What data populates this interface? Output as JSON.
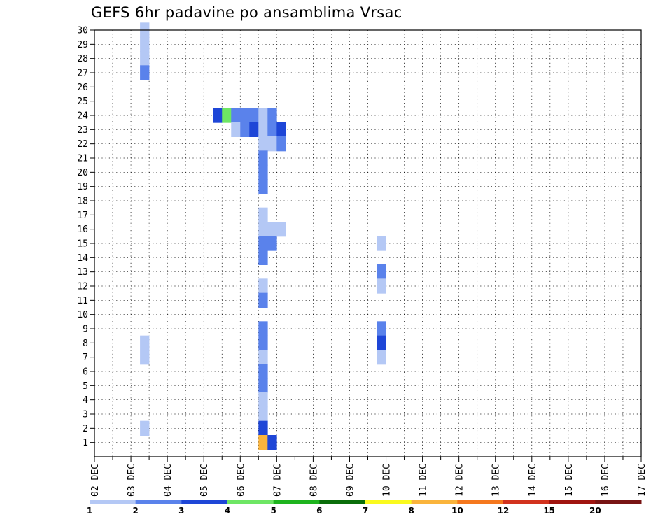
{
  "chart_data": {
    "type": "heatmap",
    "title": "GEFS 6hr padavine po ansamblima Vrsac",
    "x_ticks": [
      "02 DEC",
      "03 DEC",
      "04 DEC",
      "05 DEC",
      "06 DEC",
      "07 DEC",
      "08 DEC",
      "09 DEC",
      "10 DEC",
      "11 DEC",
      "12 DEC",
      "13 DEC",
      "14 DEC",
      "15 DEC",
      "16 DEC",
      "17 DEC"
    ],
    "y_ticks": [
      1,
      2,
      3,
      4,
      5,
      6,
      7,
      8,
      9,
      10,
      11,
      12,
      13,
      14,
      15,
      16,
      17,
      18,
      19,
      20,
      21,
      22,
      23,
      24,
      25,
      26,
      27,
      28,
      29,
      30
    ],
    "x_range": [
      "02 DEC 00Z",
      "17 DEC 00Z"
    ],
    "y_range": [
      0,
      30
    ],
    "cell_hours": 6,
    "grid": true,
    "legend": {
      "position": "bottom",
      "labels": [
        "1",
        "2",
        "3",
        "4",
        "5",
        "6",
        "7",
        "8",
        "10",
        "12",
        "15",
        "20"
      ],
      "colors": [
        "#b4c8f5",
        "#5a82eb",
        "#1e46d7",
        "#6ee664",
        "#1eb41e",
        "#0a6e0a",
        "#fafa1e",
        "#fab43c",
        "#f5781e",
        "#d2321e",
        "#a0140f",
        "#781414"
      ]
    },
    "cells": [
      {
        "col": 5,
        "row": 30,
        "v": 1
      },
      {
        "col": 5,
        "row": 29,
        "v": 1
      },
      {
        "col": 5,
        "row": 28,
        "v": 1
      },
      {
        "col": 5,
        "row": 27,
        "v": 2
      },
      {
        "col": 13,
        "row": 24,
        "v": 3
      },
      {
        "col": 14,
        "row": 24,
        "v": 4
      },
      {
        "col": 15,
        "row": 24,
        "v": 2
      },
      {
        "col": 16,
        "row": 24,
        "v": 2
      },
      {
        "col": 17,
        "row": 24,
        "v": 2
      },
      {
        "col": 18,
        "row": 24,
        "v": 1
      },
      {
        "col": 19,
        "row": 24,
        "v": 2
      },
      {
        "col": 15,
        "row": 23,
        "v": 1
      },
      {
        "col": 16,
        "row": 23,
        "v": 2
      },
      {
        "col": 17,
        "row": 23,
        "v": 3
      },
      {
        "col": 18,
        "row": 23,
        "v": 1
      },
      {
        "col": 19,
        "row": 23,
        "v": 2
      },
      {
        "col": 20,
        "row": 23,
        "v": 3
      },
      {
        "col": 18,
        "row": 22,
        "v": 1
      },
      {
        "col": 19,
        "row": 22,
        "v": 1
      },
      {
        "col": 20,
        "row": 22,
        "v": 2
      },
      {
        "col": 18,
        "row": 21,
        "v": 2
      },
      {
        "col": 18,
        "row": 20,
        "v": 2
      },
      {
        "col": 18,
        "row": 19,
        "v": 2
      },
      {
        "col": 18,
        "row": 17,
        "v": 1
      },
      {
        "col": 18,
        "row": 16,
        "v": 1
      },
      {
        "col": 19,
        "row": 16,
        "v": 1
      },
      {
        "col": 20,
        "row": 16,
        "v": 1
      },
      {
        "col": 18,
        "row": 15,
        "v": 2
      },
      {
        "col": 19,
        "row": 15,
        "v": 2
      },
      {
        "col": 18,
        "row": 14,
        "v": 2
      },
      {
        "col": 18,
        "row": 12,
        "v": 1
      },
      {
        "col": 18,
        "row": 11,
        "v": 2
      },
      {
        "col": 18,
        "row": 9,
        "v": 2
      },
      {
        "col": 18,
        "row": 8,
        "v": 2
      },
      {
        "col": 18,
        "row": 7,
        "v": 1
      },
      {
        "col": 18,
        "row": 6,
        "v": 2
      },
      {
        "col": 18,
        "row": 5,
        "v": 2
      },
      {
        "col": 18,
        "row": 4,
        "v": 1
      },
      {
        "col": 18,
        "row": 3,
        "v": 1
      },
      {
        "col": 18,
        "row": 2,
        "v": 3
      },
      {
        "col": 18,
        "row": 1,
        "v": 8
      },
      {
        "col": 19,
        "row": 1,
        "v": 3
      },
      {
        "col": 5,
        "row": 8,
        "v": 1
      },
      {
        "col": 5,
        "row": 7,
        "v": 1
      },
      {
        "col": 5,
        "row": 2,
        "v": 1
      },
      {
        "col": 31,
        "row": 15,
        "v": 1
      },
      {
        "col": 31,
        "row": 13,
        "v": 2
      },
      {
        "col": 31,
        "row": 12,
        "v": 1
      },
      {
        "col": 31,
        "row": 9,
        "v": 2
      },
      {
        "col": 31,
        "row": 8,
        "v": 3
      },
      {
        "col": 31,
        "row": 7,
        "v": 1
      }
    ]
  }
}
